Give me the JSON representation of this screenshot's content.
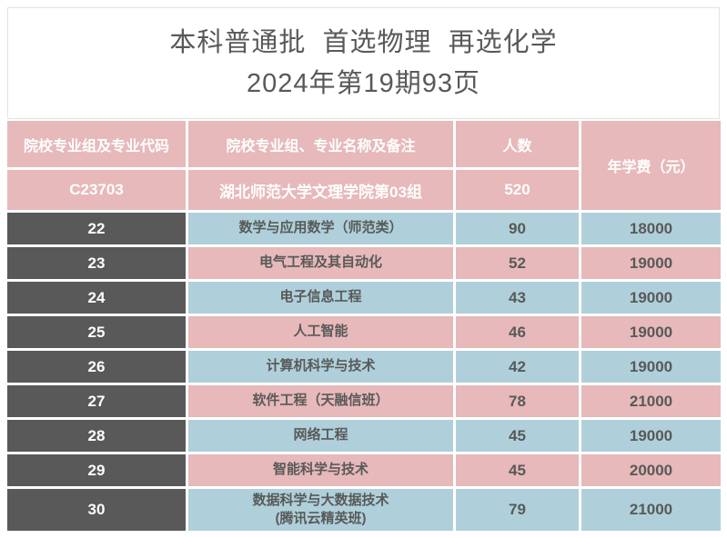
{
  "title": {
    "line1": "本科普通批  首选物理  再选化学",
    "line2": "2024年第19期93页"
  },
  "colors": {
    "pink": "#e7b9ba",
    "blue": "#afd0da",
    "dark_cell": "#595959",
    "text_dark": "#595959",
    "header_text": "#ffffff"
  },
  "table": {
    "headers": {
      "code": "院校专业组及专业代码",
      "name": "院校专业组、专业名称及备注",
      "count": "人数",
      "fee": "年学费（元）"
    },
    "group_row": {
      "code": "C23703",
      "name": "湖北师范大学文理学院第03组",
      "count": "520"
    },
    "rows": [
      {
        "code": "22",
        "major": "数学与应用数学（师范类）",
        "count": "90",
        "fee": "18000",
        "tone": "blue"
      },
      {
        "code": "23",
        "major": "电气工程及其自动化",
        "count": "52",
        "fee": "19000",
        "tone": "pink"
      },
      {
        "code": "24",
        "major": "电子信息工程",
        "count": "43",
        "fee": "19000",
        "tone": "blue"
      },
      {
        "code": "25",
        "major": "人工智能",
        "count": "46",
        "fee": "19000",
        "tone": "pink"
      },
      {
        "code": "26",
        "major": "计算机科学与技术",
        "count": "42",
        "fee": "19000",
        "tone": "blue"
      },
      {
        "code": "27",
        "major": "软件工程（天融信班）",
        "count": "78",
        "fee": "21000",
        "tone": "pink"
      },
      {
        "code": "28",
        "major": "网络工程",
        "count": "45",
        "fee": "19000",
        "tone": "blue"
      },
      {
        "code": "29",
        "major": "智能科学与技术",
        "count": "45",
        "fee": "20000",
        "tone": "pink"
      },
      {
        "code": "30",
        "major": "数据科学与大数据技术\n(腾讯云精英班)",
        "count": "79",
        "fee": "21000",
        "tone": "blue"
      }
    ]
  }
}
